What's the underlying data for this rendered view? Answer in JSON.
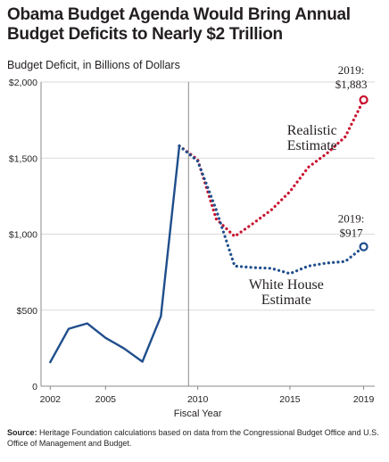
{
  "header": {
    "title_line1": "Obama Budget Agenda Would Bring Annual",
    "title_line2": "Budget Deficits to Nearly $2 Trillion",
    "subtitle": "Budget Deficit, in Billions of Dollars"
  },
  "source": {
    "label": "Source:",
    "text": "Heritage Foundation calculations based on data from the Congressional Budget Office and U.S. Office of Management and Budget."
  },
  "colors": {
    "historical": "#1f4e8c",
    "realistic": "#c8102e",
    "white_house": "#1f4e8c",
    "grid": "#d9d9d9",
    "axis_text": "#231f20"
  },
  "chart_data": {
    "type": "line",
    "xlabel": "Fiscal Year",
    "ylabel": "Budget Deficit, in Billions of Dollars",
    "xlim": [
      2001.5,
      2019.6
    ],
    "ylim": [
      0,
      2000
    ],
    "x_ticks": [
      2002,
      2005,
      2010,
      2015,
      2019
    ],
    "y_ticks": [
      0,
      500,
      1000,
      1500,
      2000
    ],
    "y_tick_labels": [
      "0",
      "$500",
      "$1,000",
      "$1,500",
      "$2,000"
    ],
    "vertical_reference_line": 2009.5,
    "grid": "horizontal",
    "series": [
      {
        "style": "solid",
        "x": [
          2002,
          2003,
          2004,
          2005,
          2006,
          2007,
          2008,
          2009
        ],
        "values": [
          158,
          378,
          413,
          318,
          248,
          161,
          459,
          1580
        ]
      },
      {
        "name": "Realistic Estimate",
        "style": "dotted",
        "x": [
          2009,
          2010,
          2011,
          2012,
          2013,
          2014,
          2015,
          2016,
          2017,
          2018,
          2019
        ],
        "values": [
          1580,
          1490,
          1100,
          985,
          1070,
          1160,
          1280,
          1440,
          1530,
          1640,
          1883
        ]
      },
      {
        "name": "White House Estimate",
        "style": "dotted",
        "x": [
          2009,
          2010,
          2011,
          2012,
          2013,
          2014,
          2015,
          2016,
          2017,
          2018,
          2019
        ],
        "values": [
          1580,
          1480,
          1160,
          790,
          780,
          775,
          740,
          790,
          810,
          820,
          917
        ]
      }
    ],
    "annotations": {
      "realistic_label_line1": "Realistic",
      "realistic_label_line2": "Estimate",
      "white_house_label_line1": "White House",
      "white_house_label_line2": "Estimate",
      "realistic_end_year": "2019:",
      "realistic_end_value": "$1,883",
      "white_house_end_year": "2019:",
      "white_house_end_value": "$917"
    }
  }
}
